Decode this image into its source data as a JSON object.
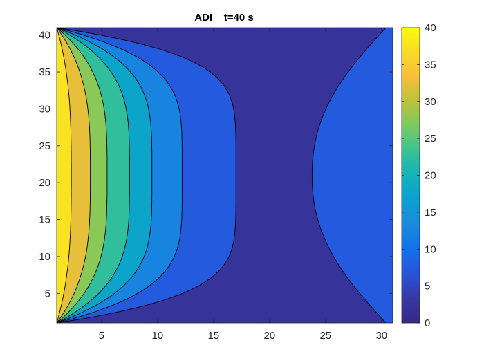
{
  "chart_data": {
    "type": "heatmap",
    "subtype": "filled-contour",
    "title": "ADI    t=40 s",
    "xlim": [
      1,
      31
    ],
    "ylim": [
      1,
      41
    ],
    "xticks": [
      5,
      10,
      15,
      20,
      25,
      30
    ],
    "yticks": [
      5,
      10,
      15,
      20,
      25,
      30,
      35,
      40
    ],
    "colorbar": {
      "limits": [
        0,
        40
      ],
      "ticks": [
        0,
        5,
        10,
        15,
        20,
        25,
        30,
        35,
        40
      ],
      "colormap": "parula",
      "location": "right"
    },
    "levels": [
      0,
      5,
      10,
      15,
      20,
      25,
      30,
      35,
      40
    ],
    "contour_lines": [
      {
        "level": 35,
        "x_mid": 2.3
      },
      {
        "level": 30,
        "x_mid": 4.0
      },
      {
        "level": 25,
        "x_mid": 5.5
      },
      {
        "level": 20,
        "x_mid": 7.5
      },
      {
        "level": 15,
        "x_mid": 9.5
      },
      {
        "level": 10,
        "x_mid": 12.2
      },
      {
        "level": 5,
        "x_mid": 17.0
      },
      {
        "level": 5,
        "x_mid": 23.8,
        "from_right": true
      }
    ],
    "grid": false
  }
}
